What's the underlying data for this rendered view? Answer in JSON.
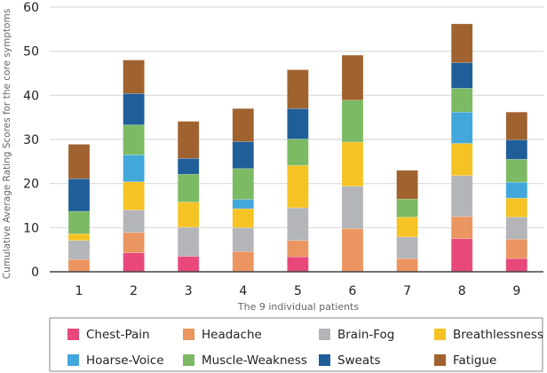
{
  "chart_data": {
    "type": "bar",
    "stacked": true,
    "title": "",
    "xlabel": "The 9 individual patients",
    "ylabel": "Cumulative Average Rating Scores for the core symptoms",
    "ylim": [
      0,
      60
    ],
    "yticks": [
      0,
      10,
      20,
      30,
      40,
      50,
      60
    ],
    "grid": true,
    "legend_position": "bottom",
    "categories": [
      "1",
      "2",
      "3",
      "4",
      "5",
      "6",
      "7",
      "8",
      "9"
    ],
    "series": [
      {
        "name": "Chest-Pain",
        "color": "#e8497a",
        "values": [
          0,
          4.3,
          3.5,
          0,
          3.4,
          0,
          0,
          7.5,
          3
        ]
      },
      {
        "name": "Headache",
        "color": "#eb9561",
        "values": [
          2.8,
          4.6,
          0,
          4.6,
          3.7,
          9.8,
          3,
          5,
          4.4
        ]
      },
      {
        "name": "Brain-Fog",
        "color": "#b3b5b8",
        "values": [
          4.3,
          5.1,
          6.6,
          5.4,
          7.4,
          9.6,
          4.9,
          9.3,
          5
        ]
      },
      {
        "name": "Breathlessness",
        "color": "#f5c323",
        "values": [
          1.5,
          6.4,
          5.7,
          4.3,
          9.6,
          10,
          4.5,
          7.3,
          4.3
        ]
      },
      {
        "name": "Hoarse-Voice",
        "color": "#42a8dc",
        "values": [
          0,
          6.1,
          0,
          2.1,
          0,
          0,
          0,
          7.1,
          3.6
        ]
      },
      {
        "name": "Muscle-Weakness",
        "color": "#7cba63",
        "values": [
          5.1,
          6.8,
          6.3,
          7,
          6,
          9.5,
          4.1,
          5.4,
          5.2
        ]
      },
      {
        "name": "Sweats",
        "color": "#1f5e99",
        "values": [
          7.4,
          7.1,
          3.6,
          6.1,
          6.9,
          0,
          0,
          5.8,
          4.4
        ]
      },
      {
        "name": "Fatigue",
        "color": "#a0622e",
        "values": [
          7.8,
          7.6,
          8.4,
          7.5,
          8.8,
          10.2,
          6.5,
          8.8,
          6.3
        ]
      }
    ]
  }
}
